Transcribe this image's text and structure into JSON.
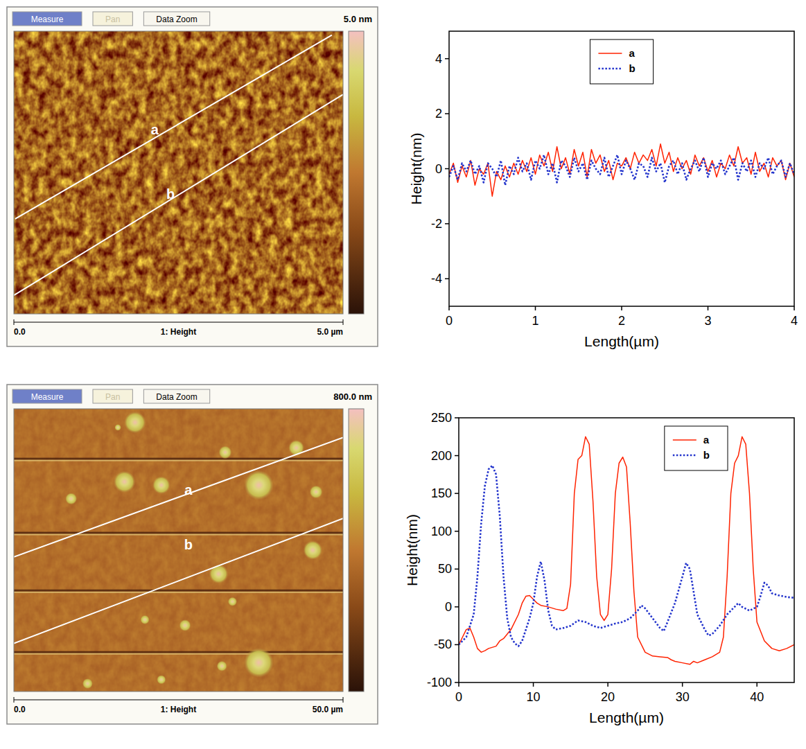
{
  "chart_data": [
    {
      "type": "line",
      "x_label": "Length(µm)",
      "y_label": "Height(nm)",
      "xlim": [
        0,
        4
      ],
      "xticks": [
        0,
        1,
        2,
        3,
        4
      ],
      "ylim": [
        -5,
        5
      ],
      "yticks": [
        -4,
        -2,
        0,
        2,
        4
      ],
      "legend": "upper center",
      "x": [
        0,
        0.05,
        0.1,
        0.15,
        0.2,
        0.25,
        0.3,
        0.35,
        0.4,
        0.45,
        0.5,
        0.55,
        0.6,
        0.65,
        0.7,
        0.75,
        0.8,
        0.85,
        0.9,
        0.95,
        1,
        1.05,
        1.1,
        1.15,
        1.2,
        1.25,
        1.3,
        1.35,
        1.4,
        1.45,
        1.5,
        1.55,
        1.6,
        1.65,
        1.7,
        1.75,
        1.8,
        1.85,
        1.9,
        1.95,
        2,
        2.05,
        2.1,
        2.15,
        2.2,
        2.25,
        2.3,
        2.35,
        2.4,
        2.45,
        2.5,
        2.55,
        2.6,
        2.65,
        2.7,
        2.75,
        2.8,
        2.85,
        2.9,
        2.95,
        3,
        3.05,
        3.1,
        3.15,
        3.2,
        3.25,
        3.3,
        3.35,
        3.4,
        3.45,
        3.5,
        3.55,
        3.6,
        3.65,
        3.7,
        3.75,
        3.8,
        3.85,
        3.9,
        3.95,
        4
      ],
      "series": [
        {
          "name": "a",
          "color": "#ff2200",
          "line_style": "solid",
          "values": [
            -0.2,
            0.2,
            -0.5,
            0.1,
            -0.3,
            0.3,
            -0.6,
            0.0,
            -0.2,
            0.2,
            -1.0,
            -0.1,
            -0.4,
            0.1,
            -0.3,
            0.2,
            -0.2,
            0.3,
            -0.1,
            0.4,
            -0.2,
            0.5,
            0.1,
            0.6,
            -0.1,
            0.8,
            0.0,
            0.4,
            -0.2,
            0.7,
            0.1,
            0.6,
            -0.3,
            0.7,
            0.2,
            0.5,
            -0.1,
            0.3,
            -0.4,
            0.2,
            0.1,
            0.4,
            0.0,
            0.6,
            0.2,
            0.5,
            0.3,
            0.7,
            0.1,
            0.9,
            0.2,
            0.6,
            -0.1,
            0.4,
            0.0,
            0.3,
            -0.2,
            0.5,
            0.1,
            0.4,
            -0.1,
            0.3,
            -0.3,
            0.2,
            0.0,
            0.5,
            0.1,
            0.8,
            0.2,
            0.4,
            -0.2,
            0.6,
            -0.1,
            0.2,
            -0.3,
            0.4,
            0.1,
            0.3,
            -0.4,
            0.2,
            -0.3
          ]
        },
        {
          "name": "b",
          "color": "#2233cc",
          "line_style": "dotted",
          "values": [
            -0.3,
            0.1,
            -0.4,
            0.2,
            -0.1,
            0.3,
            -0.2,
            0.1,
            -0.5,
            0.2,
            0.0,
            -0.3,
            0.3,
            -0.6,
            0.1,
            -0.2,
            0.4,
            -0.1,
            0.2,
            -0.4,
            0.3,
            0.0,
            0.5,
            -0.2,
            0.2,
            -0.5,
            0.3,
            0.1,
            -0.3,
            0.4,
            -0.1,
            0.2,
            -0.4,
            0.3,
            0.0,
            -0.2,
            0.4,
            -0.3,
            0.1,
            0.5,
            -0.2,
            0.3,
            0.0,
            -0.4,
            0.2,
            0.1,
            -0.3,
            0.4,
            -0.1,
            0.2,
            -0.5,
            0.1,
            0.3,
            -0.2,
            0.2,
            -0.4,
            0.0,
            0.3,
            -0.1,
            0.4,
            -0.3,
            0.2,
            0.0,
            0.3,
            -0.2,
            0.1,
            0.4,
            -0.4,
            0.2,
            -0.1,
            0.3,
            -0.3,
            0.2,
            0.0,
            0.4,
            -0.2,
            0.1,
            0.3,
            -0.3,
            0.2,
            -0.2
          ]
        }
      ]
    },
    {
      "type": "line",
      "x_label": "Length(µm)",
      "y_label": "Height(nm)",
      "xlim": [
        0,
        45
      ],
      "xticks": [
        0,
        10,
        20,
        30,
        40
      ],
      "ylim": [
        -100,
        250
      ],
      "yticks": [
        -100,
        -50,
        0,
        50,
        100,
        150,
        200,
        250
      ],
      "legend": "upper right",
      "series": [
        {
          "name": "a",
          "color": "#ff2200",
          "line_style": "solid",
          "x": [
            0,
            0.5,
            1,
            1.5,
            2,
            2.5,
            3,
            3.5,
            4,
            5,
            5.5,
            6,
            7,
            8,
            8.5,
            9,
            9.5,
            10,
            10.5,
            11,
            12,
            13,
            14,
            14.5,
            15,
            15.5,
            16,
            16.5,
            17,
            17.5,
            18,
            18.5,
            19,
            19.5,
            20,
            20.5,
            21,
            21.5,
            22,
            22.5,
            23,
            23.5,
            24,
            25,
            26,
            27,
            28,
            28.5,
            29,
            30,
            31,
            31.5,
            32,
            33,
            34,
            35,
            35.5,
            36,
            36.5,
            37,
            37.5,
            38,
            38.5,
            39,
            39.5,
            40,
            41,
            42,
            43,
            44,
            45
          ],
          "values": [
            -50,
            -40,
            -30,
            -28,
            -40,
            -55,
            -60,
            -58,
            -55,
            -52,
            -45,
            -42,
            -30,
            -10,
            5,
            14,
            15,
            10,
            5,
            2,
            0,
            -3,
            -5,
            -2,
            30,
            150,
            195,
            200,
            225,
            215,
            140,
            40,
            -10,
            -18,
            -10,
            50,
            150,
            190,
            198,
            185,
            110,
            20,
            -40,
            -60,
            -65,
            -66,
            -67,
            -70,
            -72,
            -74,
            -76,
            -72,
            -74,
            -70,
            -66,
            -60,
            -40,
            40,
            150,
            190,
            200,
            225,
            215,
            150,
            50,
            -20,
            -45,
            -55,
            -58,
            -55,
            -50
          ]
        },
        {
          "name": "b",
          "color": "#2233cc",
          "line_style": "dotted",
          "x": [
            0,
            1,
            2,
            2.5,
            3,
            3.5,
            4,
            4.5,
            5,
            5.5,
            6,
            6.5,
            7,
            7.5,
            8,
            8.5,
            9,
            9.5,
            10,
            10.5,
            11,
            11.5,
            12,
            12.5,
            13,
            14,
            15,
            16,
            17,
            18,
            19,
            20,
            21,
            22,
            23,
            24,
            24.5,
            25,
            26,
            27,
            27.5,
            28,
            29,
            30,
            30.5,
            31,
            31.5,
            32,
            33,
            33.5,
            34,
            35,
            36,
            37,
            37.5,
            38,
            39,
            40,
            40.5,
            41,
            41.5,
            42,
            43,
            44,
            45
          ],
          "values": [
            -50,
            -40,
            -10,
            40,
            110,
            160,
            182,
            187,
            175,
            120,
            40,
            -15,
            -40,
            -48,
            -52,
            -45,
            -30,
            -15,
            5,
            40,
            60,
            35,
            -5,
            -25,
            -30,
            -28,
            -25,
            -18,
            -20,
            -25,
            -28,
            -25,
            -22,
            -20,
            -15,
            -5,
            2,
            -2,
            -15,
            -28,
            -32,
            -20,
            5,
            40,
            58,
            50,
            20,
            -10,
            -30,
            -38,
            -36,
            -25,
            -10,
            0,
            5,
            0,
            -5,
            0,
            15,
            32,
            28,
            18,
            15,
            13,
            12
          ]
        }
      ]
    }
  ],
  "afm_images": [
    {
      "toolbar": [
        "Measure",
        "Pan",
        "Data Zoom"
      ],
      "z_label": "5.0 nm",
      "scale_labels": [
        "0.0",
        "1: Height",
        "5.0 µm"
      ],
      "size": 5.0,
      "lines": [
        {
          "label": "a",
          "start": [
            0.02,
            3.32
          ],
          "end": [
            4.83,
            0.07
          ],
          "label_at": [
            2.14,
            1.74
          ]
        },
        {
          "label": "b",
          "start": [
            0.0,
            4.67
          ],
          "end": [
            5.0,
            1.12
          ],
          "label_at": [
            2.38,
            2.88
          ]
        }
      ]
    },
    {
      "toolbar": [
        "Measure",
        "Pan",
        "Data Zoom"
      ],
      "z_label": "800.0 nm",
      "scale_labels": [
        "0.0",
        "1: Height",
        "50.0 µm"
      ],
      "size": 50.0,
      "streaks": [
        8.9,
        22.0,
        32.2,
        43.1
      ],
      "particles": [
        {
          "x": 18.4,
          "y": 2.4,
          "d": 3.3
        },
        {
          "x": 32.1,
          "y": 7.7,
          "d": 2.0
        },
        {
          "x": 42.9,
          "y": 6.9,
          "d": 2.4
        },
        {
          "x": 16.8,
          "y": 12.9,
          "d": 3.3
        },
        {
          "x": 22.4,
          "y": 13.5,
          "d": 2.7
        },
        {
          "x": 8.7,
          "y": 15.9,
          "d": 1.8
        },
        {
          "x": 37.2,
          "y": 13.5,
          "d": 4.5
        },
        {
          "x": 45.9,
          "y": 14.7,
          "d": 2.0
        },
        {
          "x": 45.4,
          "y": 25.0,
          "d": 2.9
        },
        {
          "x": 31.1,
          "y": 29.2,
          "d": 2.9
        },
        {
          "x": 33.2,
          "y": 34.1,
          "d": 1.4
        },
        {
          "x": 26.0,
          "y": 38.3,
          "d": 1.8
        },
        {
          "x": 19.9,
          "y": 37.3,
          "d": 1.4
        },
        {
          "x": 37.2,
          "y": 44.9,
          "d": 4.5
        },
        {
          "x": 31.6,
          "y": 45.5,
          "d": 1.6
        },
        {
          "x": 11.2,
          "y": 48.6,
          "d": 1.6
        },
        {
          "x": 22.4,
          "y": 47.9,
          "d": 1.4
        },
        {
          "x": 15.8,
          "y": 3.3,
          "d": 1.0
        }
      ],
      "lines": [
        {
          "label": "a",
          "start": [
            0.0,
            26.2
          ],
          "end": [
            50.0,
            5.07
          ],
          "label_at": [
            26.5,
            14.3
          ]
        },
        {
          "label": "b",
          "start": [
            0.0,
            41.5
          ],
          "end": [
            50.0,
            19.4
          ],
          "label_at": [
            26.5,
            24.0
          ]
        }
      ]
    }
  ]
}
